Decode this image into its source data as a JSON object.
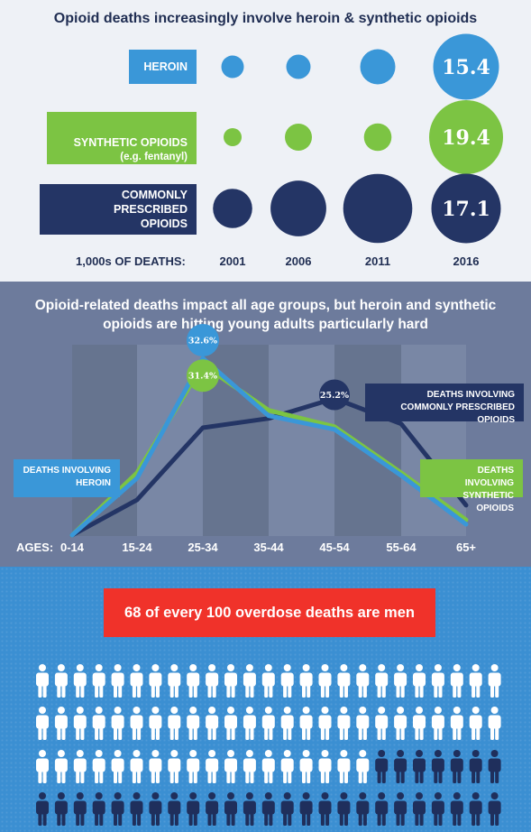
{
  "section1": {
    "title": "Opioid deaths increasingly involve heroin & synthetic opioids",
    "unit_label": "1,000s OF DEATHS:",
    "chart_data": {
      "type": "bubble",
      "categories": [
        "2001",
        "2006",
        "2011",
        "2016"
      ],
      "series": [
        {
          "name": "HEROIN",
          "values": [
            1.8,
            2.1,
            4.4,
            15.4
          ],
          "color": "#3a97d8"
        },
        {
          "name": "SYNTHETIC OPIOIDS",
          "subname": "(e.g. fentanyl)",
          "values": [
            1.0,
            2.6,
            2.7,
            19.4
          ],
          "color": "#7cc443"
        },
        {
          "name": "COMMONLY PRESCRIBED OPIOIDS",
          "values": [
            5.5,
            11.0,
            16.9,
            17.1
          ],
          "color": "#243565"
        }
      ],
      "labeled": [
        null,
        null,
        null,
        "shown"
      ],
      "value_labels": [
        "15.4",
        "19.4",
        "17.1"
      ]
    }
  },
  "section2": {
    "title": "Opioid-related deaths impact all age groups, but heroin and synthetic opioids are hitting young adults particularly hard",
    "ages_label": "AGES:",
    "chart_data": {
      "type": "line",
      "categories": [
        "0-14",
        "15-24",
        "25-34",
        "35-44",
        "45-54",
        "55-64",
        "65+"
      ],
      "ylim": [
        0,
        40
      ],
      "series": [
        {
          "name": "DEATHS INVOLVING HEROIN",
          "values": [
            0,
            10.5,
            32.6,
            22.0,
            19.5,
            11.0,
            2.0
          ],
          "color": "#3a97d8",
          "peak_label": "32.6%"
        },
        {
          "name": "DEATHS INVOLVING SYNTHETIC OPIOIDS",
          "values": [
            0,
            11.5,
            31.4,
            23.0,
            20.0,
            11.5,
            2.8
          ],
          "color": "#7cc443",
          "peak_label": "31.4%"
        },
        {
          "name": "DEATHS INVOLVING COMMONLY PRESCRIBED OPIOIDS",
          "values": [
            0,
            6.5,
            19.8,
            21.5,
            25.2,
            20.5,
            5.5
          ],
          "color": "#243565",
          "peak_label": "25.2%"
        }
      ],
      "tags": {
        "heroin": "DEATHS INVOLVING HEROIN",
        "synthetic": "DEATHS INVOLVING SYNTHETIC OPIOIDS",
        "prescribed": "DEATHS INVOLVING COMMONLY PRESCRIBED OPIOIDS"
      }
    }
  },
  "section3": {
    "banner": "68 of every 100 overdose deaths are men",
    "chart_data": {
      "type": "pictogram",
      "total": 100,
      "men": 68,
      "women": 32,
      "colors": {
        "men": "#ffffff",
        "women": "#1f2f5c"
      }
    }
  }
}
